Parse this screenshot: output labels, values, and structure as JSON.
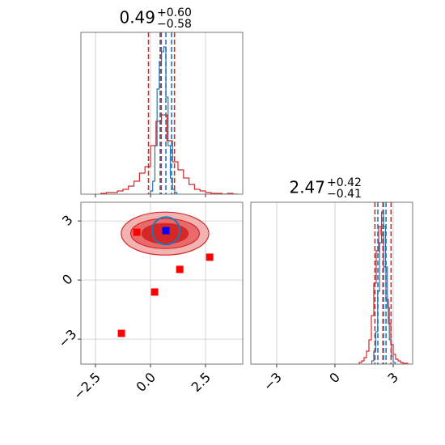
{
  "chart_data": [
    {
      "type": "histogram",
      "title": 0.49,
      "upper": {
        "value": 0.6,
        "label": "+0.60"
      },
      "lower": {
        "value": 0.58,
        "label": "−0.58"
      },
      "title_color": "#d62728",
      "xlim": [
        -3.16,
        4.19
      ],
      "ylim": [
        0,
        1
      ],
      "xticks": [
        {
          "value": -2.5,
          "label": "−2.5"
        },
        {
          "value": 0,
          "label": "0.0"
        },
        {
          "value": 2.5,
          "label": "2.5"
        }
      ],
      "grid": true,
      "series": [
        {
          "color": "#d62728",
          "bins": [
            -2.25,
            -2.0,
            -1.75,
            -1.5,
            -1.25,
            -1.0,
            -0.75,
            -0.5,
            -0.25,
            0,
            0.25,
            0.5,
            0.75,
            1.0,
            1.25,
            1.5,
            1.75,
            2.0,
            2.25,
            2.5,
            2.75,
            3.0,
            3.25,
            3.5,
            3.75,
            4.0
          ],
          "values": [
            0.005,
            0.01,
            0.01,
            0.02,
            0.03,
            0.05,
            0.08,
            0.13,
            0.17,
            0.3,
            0.45,
            0.49,
            0.33,
            0.2,
            0.15,
            0.1,
            0.06,
            0.03,
            0.02,
            0.01,
            0.005,
            0.005,
            0,
            0.005,
            0
          ]
        },
        {
          "color": "#1f77b4",
          "bins": [
            0.0,
            0.1,
            0.2,
            0.3,
            0.4,
            0.5,
            0.6,
            0.7,
            0.8,
            0.9,
            1.0,
            1.1,
            1.2
          ],
          "values": [
            0.02,
            0.08,
            0.3,
            0.65,
            0.82,
            0.88,
            0.91,
            0.6,
            0.3,
            0.1,
            0.03,
            0.01
          ],
          "quantiles": [
            0.44,
            0.7,
            0.96
          ]
        }
      ]
    },
    {
      "type": "contour",
      "xlim": [
        -3.16,
        4.19
      ],
      "ylim": [
        -4.27,
        3.95
      ],
      "xticks": [
        {
          "value": -2.5,
          "label": "−2.5"
        },
        {
          "value": 0,
          "label": "0.0"
        },
        {
          "value": 2.5,
          "label": "2.5"
        }
      ],
      "yticks": [
        {
          "value": -3,
          "label": "−3"
        },
        0,
        3
      ],
      "grid": true,
      "contours": [
        {
          "color": "#f4b3b3",
          "stroke": "#d62728",
          "cx": 0.66,
          "cy": 2.36,
          "rx": 1.99,
          "ry": 1.09
        },
        {
          "color": "#e86a6a",
          "stroke": "#d62728",
          "cx": 0.66,
          "cy": 2.36,
          "rx": 1.56,
          "ry": 0.76
        },
        {
          "color": "#d62728",
          "stroke": "#d62728",
          "cx": 0.66,
          "cy": 2.36,
          "rx": 1.05,
          "ry": 0.51
        },
        {
          "color": "none",
          "stroke": "#1f77b4",
          "cx": 0.7,
          "cy": 2.5,
          "rx": 0.63,
          "ry": 0.7
        }
      ],
      "points": [
        {
          "color": "#ff0000",
          "x": [
            -0.62,
            0.19,
            1.33,
            2.69,
            -1.32
          ],
          "y": [
            2.43,
            -0.61,
            0.54,
            1.16,
            -2.71
          ]
        },
        {
          "color": "#0000ff",
          "x": [
            0.7
          ],
          "y": [
            2.51
          ]
        }
      ]
    },
    {
      "type": "histogram",
      "title": 2.47,
      "upper": {
        "value": 0.42,
        "label": "+0.42"
      },
      "lower": {
        "value": 0.41,
        "label": "−0.41"
      },
      "title_color": "#d62728",
      "xlim": [
        -4.33,
        4.0
      ],
      "ylim": [
        0,
        1
      ],
      "xticks": [
        {
          "value": -3,
          "label": "−3"
        },
        0,
        3
      ],
      "grid": true,
      "series": [
        {
          "color": "#d62728",
          "bins": [
            1.25,
            1.375,
            1.5,
            1.625,
            1.75,
            1.875,
            2.0,
            2.125,
            2.25,
            2.375,
            2.5,
            2.625,
            2.75,
            2.875,
            3.0,
            3.125,
            3.25,
            3.375,
            3.5,
            3.625,
            3.75
          ],
          "values": [
            0.01,
            0.02,
            0.04,
            0.08,
            0.15,
            0.3,
            0.5,
            0.7,
            0.85,
            0.8,
            0.6,
            0.4,
            0.25,
            0.12,
            0.06,
            0.03,
            0.02,
            0.01,
            0.005,
            0.005
          ]
        },
        {
          "color": "#1f77b4",
          "bins": [
            1.9,
            2.0,
            2.1,
            2.2,
            2.3,
            2.4,
            2.5,
            2.6,
            2.7,
            2.8,
            2.9,
            3.0,
            3.1
          ],
          "values": [
            0.02,
            0.08,
            0.2,
            0.45,
            0.75,
            0.94,
            0.85,
            0.6,
            0.35,
            0.15,
            0.05,
            0.01
          ],
          "quantiles": [
            2.21,
            2.5,
            2.63
          ]
        }
      ]
    }
  ]
}
